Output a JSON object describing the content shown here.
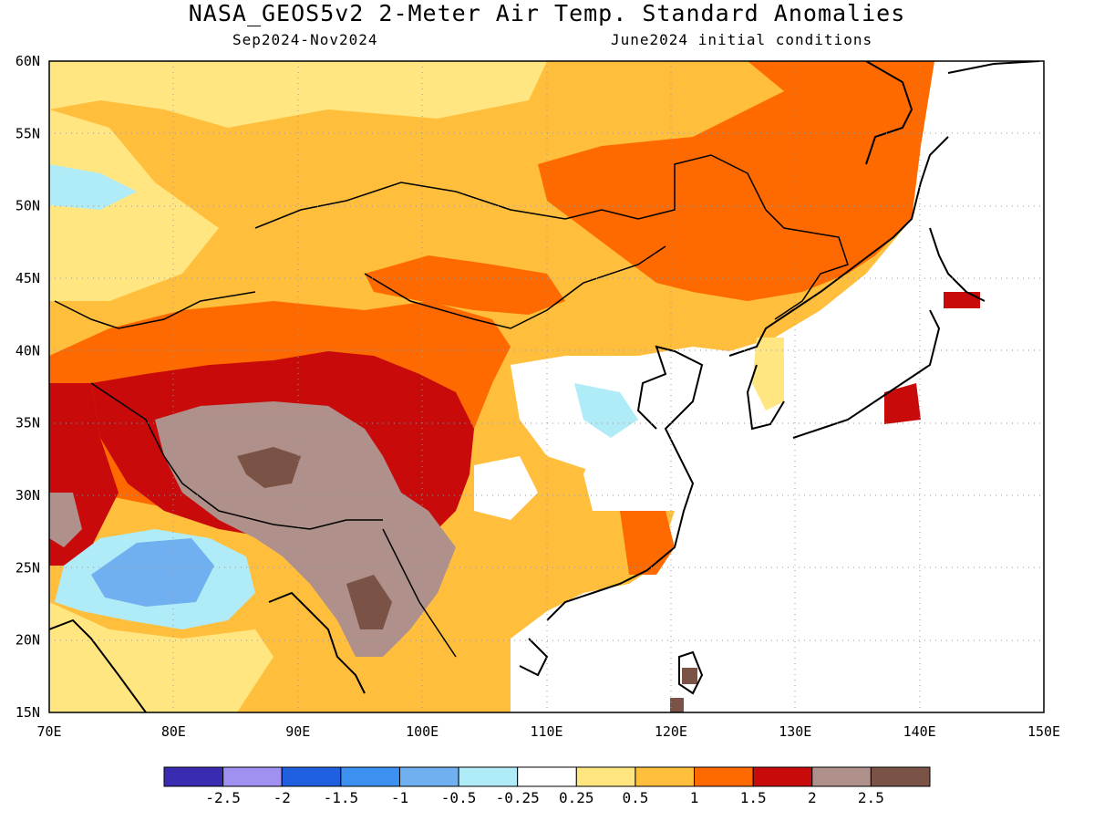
{
  "title": "NASA_GEOS5v2 2-Meter Air Temp. Standard Anomalies",
  "subtitle_left": "Sep2024-Nov2024",
  "subtitle_right": "June2024 initial conditions",
  "map": {
    "lon_range": [
      70,
      150
    ],
    "lat_range": [
      15,
      60
    ],
    "lon_ticks": [
      "70E",
      "80E",
      "90E",
      "100E",
      "110E",
      "120E",
      "130E",
      "140E",
      "150E"
    ],
    "lat_ticks": [
      "15N",
      "20N",
      "25N",
      "30N",
      "35N",
      "40N",
      "45N",
      "50N",
      "55N",
      "60N"
    ],
    "grid": "dotted"
  },
  "colorbar": {
    "labels": [
      "-2.5",
      "-2",
      "-1.5",
      "-1",
      "-0.5",
      "-0.25",
      "0.25",
      "0.5",
      "1",
      "1.5",
      "2",
      "2.5"
    ],
    "colors": [
      "#3a2cb0",
      "#a090f0",
      "#2060e0",
      "#3c90f0",
      "#70b0f0",
      "#b0ecf8",
      "#ffffff",
      "#ffe680",
      "#ffbe3c",
      "#ff6a00",
      "#c80a0a",
      "#b0908a",
      "#7a5246"
    ]
  },
  "anomaly_colors": {
    "cool_light": "#b0ecf8",
    "cool_mid": "#70b0f0",
    "warm_light": "#ffe680",
    "warm_mid": "#ffbe3c",
    "warm_strong": "#ff6a00",
    "warm_very": "#c80a0a",
    "extreme_1": "#b0908a",
    "extreme_2": "#7a5246"
  }
}
